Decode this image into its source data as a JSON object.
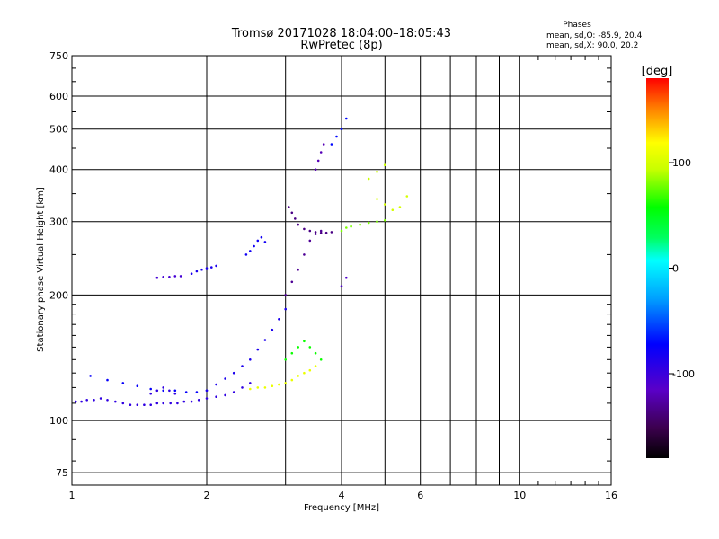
{
  "chart_data": {
    "type": "scatter",
    "title": "Tromsø 20171028 18:04:00–18:05:43",
    "subtitle": "RwPretec (8p)",
    "xlabel": "Frequency [MHz]",
    "ylabel": "Stationary phase Virtual Height [km]",
    "x_scale": "log2",
    "y_scale": "log",
    "xlim": [
      1,
      16
    ],
    "ylim": [
      70,
      750
    ],
    "xticks": [
      1,
      2,
      4,
      6,
      10,
      16
    ],
    "xtick_labels": [
      "1",
      "2",
      "4",
      "6",
      "10",
      "16"
    ],
    "x_gridlines": [
      1,
      2,
      3,
      4,
      5,
      6,
      7,
      8,
      9,
      10
    ],
    "yticks": [
      75,
      100,
      200,
      300,
      400,
      500,
      600,
      750
    ],
    "ytick_labels": [
      "75",
      "100",
      "200",
      "300",
      "400",
      "500",
      "600",
      "750"
    ],
    "y_gridlines": [
      75,
      100,
      200,
      300,
      400,
      500,
      600,
      750
    ],
    "grid": true,
    "stats": {
      "heading": "Phases",
      "line1": "mean, sd,O: -85.9, 20.4",
      "line2": "mean, sd,X:  90.0, 20.2"
    },
    "colorbar": {
      "label": "[deg]",
      "range": [
        -180,
        180
      ],
      "ticks": [
        100,
        0,
        -100
      ],
      "tick_labels": [
        "100",
        "0",
        "-100"
      ],
      "placement": "right"
    },
    "traces": [
      {
        "x": [
          1.02,
          1.05,
          1.08,
          1.12,
          1.16,
          1.2,
          1.25,
          1.3,
          1.35,
          1.4,
          1.45,
          1.5,
          1.55,
          1.6,
          1.66,
          1.72,
          1.78,
          1.85,
          1.92,
          2.0,
          2.1,
          2.2,
          2.3,
          2.4,
          2.5
        ],
        "y": [
          111,
          111,
          112,
          112,
          113,
          112,
          111,
          110,
          109,
          109,
          109,
          109,
          110,
          110,
          110,
          110,
          111,
          111,
          112,
          113,
          114,
          115,
          117,
          120,
          123
        ],
        "phase": -95
      },
      {
        "x": [
          1.5,
          1.55,
          1.6,
          1.65,
          1.7
        ],
        "y": [
          116,
          118,
          120,
          118,
          116
        ],
        "phase": -95
      },
      {
        "x": [
          1.1,
          1.2,
          1.3,
          1.4,
          1.5,
          1.6,
          1.7,
          1.8,
          1.9,
          2.0
        ],
        "y": [
          128,
          125,
          123,
          121,
          119,
          118,
          118,
          117,
          117,
          118
        ],
        "phase": -75
      },
      {
        "x": [
          2.0,
          2.1,
          2.2,
          2.3,
          2.4,
          2.5,
          2.6,
          2.7,
          2.8,
          2.9,
          3.0
        ],
        "y": [
          118,
          122,
          126,
          130,
          135,
          140,
          148,
          156,
          165,
          175,
          185
        ],
        "phase": -85
      },
      {
        "x": [
          2.5,
          2.6,
          2.7,
          2.8,
          2.9,
          3.0,
          3.1,
          3.2,
          3.3,
          3.4,
          3.5
        ],
        "y": [
          119,
          120,
          120,
          121,
          122,
          123,
          125,
          128,
          130,
          132,
          135
        ],
        "phase": 110
      },
      {
        "x": [
          3.0,
          3.1,
          3.2,
          3.3,
          3.4,
          3.5,
          3.6
        ],
        "y": [
          140,
          145,
          150,
          155,
          150,
          145,
          140
        ],
        "phase": 60
      },
      {
        "x": [
          3.0,
          3.1,
          3.2,
          3.3,
          3.4,
          3.5,
          3.6
        ],
        "y": [
          200,
          215,
          230,
          250,
          270,
          280,
          285
        ],
        "phase": -130
      },
      {
        "x": [
          3.05,
          3.1,
          3.15,
          3.2,
          3.3,
          3.4,
          3.5,
          3.6,
          3.7,
          3.8
        ],
        "y": [
          325,
          315,
          305,
          295,
          288,
          285,
          283,
          282,
          282,
          283
        ],
        "phase": -135
      },
      {
        "x": [
          3.5,
          3.55,
          3.6,
          3.65
        ],
        "y": [
          400,
          420,
          440,
          460
        ],
        "phase": -120
      },
      {
        "x": [
          4.0,
          4.1,
          4.2,
          4.4,
          4.6,
          4.8,
          5.0
        ],
        "y": [
          285,
          290,
          292,
          295,
          298,
          300,
          302
        ],
        "phase": 80
      },
      {
        "x": [
          4.8,
          5.0,
          5.2,
          5.4,
          5.6
        ],
        "y": [
          340,
          330,
          320,
          325,
          345
        ],
        "phase": 100
      },
      {
        "x": [
          4.6,
          4.8,
          5.0
        ],
        "y": [
          380,
          395,
          410
        ],
        "phase": 95
      },
      {
        "x": [
          4.0,
          4.1
        ],
        "y": [
          210,
          220
        ],
        "phase": -110
      },
      {
        "x": [
          1.55,
          1.6,
          1.65,
          1.7,
          1.75
        ],
        "y": [
          220,
          221,
          221,
          222,
          222
        ],
        "phase": -105
      },
      {
        "x": [
          1.85,
          1.9,
          1.95,
          2.0,
          2.05,
          2.1
        ],
        "y": [
          225,
          228,
          230,
          232,
          233,
          235
        ],
        "phase": -85
      },
      {
        "x": [
          2.45,
          2.5,
          2.55,
          2.6,
          2.65,
          2.7
        ],
        "y": [
          250,
          255,
          262,
          270,
          275,
          268
        ],
        "phase": -80
      },
      {
        "x": [
          3.8,
          3.9,
          4.0,
          4.1
        ],
        "y": [
          460,
          480,
          500,
          530
        ],
        "phase": -70
      }
    ]
  }
}
